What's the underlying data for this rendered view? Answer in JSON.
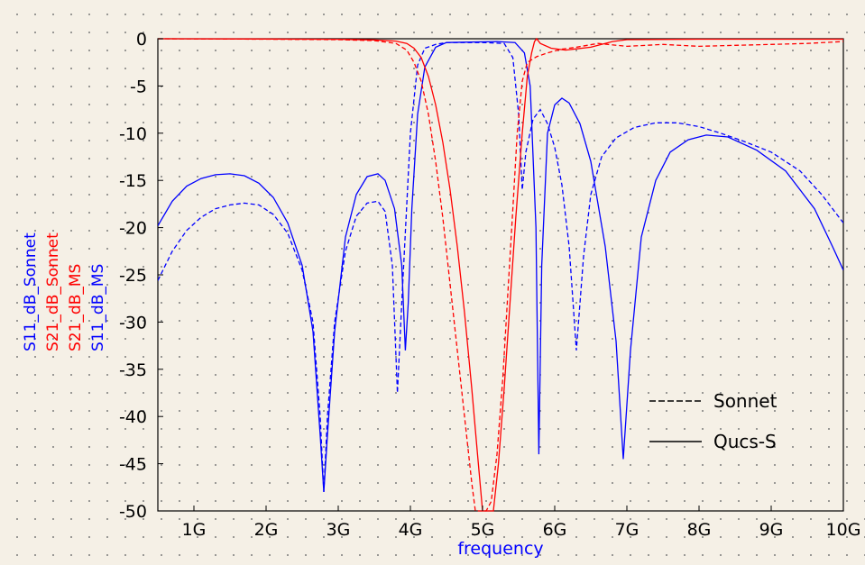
{
  "chart_data": {
    "type": "line",
    "xlabel": "frequency",
    "ylabels": [
      {
        "text": "S11_dB_Sonnet",
        "color": "#0000ff"
      },
      {
        "text": "S21_dB_Sonnet",
        "color": "#ff0000"
      },
      {
        "text": "S21_dB_MS",
        "color": "#ff0000"
      },
      {
        "text": "S11_dB_MS",
        "color": "#0000ff"
      }
    ],
    "xlim": [
      0.5,
      10
    ],
    "ylim": [
      -50,
      0
    ],
    "xticks": [
      {
        "v": 1,
        "label": "1G"
      },
      {
        "v": 2,
        "label": "2G"
      },
      {
        "v": 3,
        "label": "3G"
      },
      {
        "v": 4,
        "label": "4G"
      },
      {
        "v": 5,
        "label": "5G"
      },
      {
        "v": 6,
        "label": "6G"
      },
      {
        "v": 7,
        "label": "7G"
      },
      {
        "v": 8,
        "label": "8G"
      },
      {
        "v": 9,
        "label": "9G"
      },
      {
        "v": 10,
        "label": "10G"
      }
    ],
    "yticks": [
      0,
      -5,
      -10,
      -15,
      -20,
      -25,
      -30,
      -35,
      -40,
      -45,
      -50
    ],
    "grid": true,
    "legend_position": "bottom-right",
    "legend": [
      {
        "label": "Sonnet",
        "style": "dashed"
      },
      {
        "label": "Qucs-S",
        "style": "solid"
      }
    ],
    "series": [
      {
        "name": "S11_dB_Sonnet",
        "color": "#0000ff",
        "style": "dashed",
        "points": [
          [
            0.5,
            -25.6
          ],
          [
            0.7,
            -22.5
          ],
          [
            0.9,
            -20.3
          ],
          [
            1.1,
            -18.9
          ],
          [
            1.3,
            -18
          ],
          [
            1.5,
            -17.6
          ],
          [
            1.7,
            -17.4
          ],
          [
            1.9,
            -17.6
          ],
          [
            2.1,
            -18.6
          ],
          [
            2.3,
            -20.6
          ],
          [
            2.5,
            -24.5
          ],
          [
            2.65,
            -30
          ],
          [
            2.75,
            -40
          ],
          [
            2.8,
            -48
          ],
          [
            2.85,
            -40
          ],
          [
            2.95,
            -30
          ],
          [
            3.1,
            -22.5
          ],
          [
            3.25,
            -18.8
          ],
          [
            3.4,
            -17.4
          ],
          [
            3.55,
            -17.2
          ],
          [
            3.65,
            -18.3
          ],
          [
            3.75,
            -24
          ],
          [
            3.82,
            -37.5
          ],
          [
            3.88,
            -28
          ],
          [
            3.92,
            -22
          ],
          [
            4.0,
            -10
          ],
          [
            4.1,
            -2.8
          ],
          [
            4.2,
            -1
          ],
          [
            4.35,
            -0.6
          ],
          [
            4.5,
            -0.4
          ],
          [
            5.0,
            -0.4
          ],
          [
            5.3,
            -0.5
          ],
          [
            5.42,
            -2
          ],
          [
            5.5,
            -8
          ],
          [
            5.55,
            -16
          ],
          [
            5.6,
            -12
          ],
          [
            5.7,
            -8.5
          ],
          [
            5.8,
            -7.5
          ],
          [
            5.9,
            -9
          ],
          [
            6.0,
            -11.5
          ],
          [
            6.1,
            -15.5
          ],
          [
            6.2,
            -22
          ],
          [
            6.3,
            -33
          ],
          [
            6.4,
            -23
          ],
          [
            6.5,
            -16.5
          ],
          [
            6.65,
            -12.5
          ],
          [
            6.85,
            -10.5
          ],
          [
            7.1,
            -9.4
          ],
          [
            7.4,
            -8.9
          ],
          [
            7.7,
            -8.9
          ],
          [
            8.0,
            -9.3
          ],
          [
            8.3,
            -10
          ],
          [
            8.6,
            -10.8
          ],
          [
            9.0,
            -12
          ],
          [
            9.4,
            -14
          ],
          [
            9.7,
            -16.5
          ],
          [
            10.0,
            -19.5
          ]
        ]
      },
      {
        "name": "S11_dB_MS",
        "color": "#0000ff",
        "style": "solid",
        "points": [
          [
            0.5,
            -19.8
          ],
          [
            0.7,
            -17.2
          ],
          [
            0.9,
            -15.6
          ],
          [
            1.1,
            -14.8
          ],
          [
            1.3,
            -14.4
          ],
          [
            1.5,
            -14.3
          ],
          [
            1.7,
            -14.5
          ],
          [
            1.9,
            -15.3
          ],
          [
            2.1,
            -16.8
          ],
          [
            2.3,
            -19.5
          ],
          [
            2.5,
            -24
          ],
          [
            2.65,
            -31
          ],
          [
            2.75,
            -42
          ],
          [
            2.8,
            -48
          ],
          [
            2.85,
            -42
          ],
          [
            2.95,
            -31
          ],
          [
            3.1,
            -21
          ],
          [
            3.25,
            -16.5
          ],
          [
            3.4,
            -14.6
          ],
          [
            3.55,
            -14.3
          ],
          [
            3.65,
            -15
          ],
          [
            3.78,
            -18
          ],
          [
            3.88,
            -24
          ],
          [
            3.93,
            -33
          ],
          [
            3.97,
            -28
          ],
          [
            4.02,
            -18
          ],
          [
            4.1,
            -8
          ],
          [
            4.2,
            -3
          ],
          [
            4.35,
            -0.9
          ],
          [
            4.5,
            -0.4
          ],
          [
            5.2,
            -0.3
          ],
          [
            5.45,
            -0.4
          ],
          [
            5.58,
            -1.5
          ],
          [
            5.66,
            -5
          ],
          [
            5.74,
            -20
          ],
          [
            5.78,
            -44
          ],
          [
            5.82,
            -24
          ],
          [
            5.9,
            -10
          ],
          [
            6.0,
            -7
          ],
          [
            6.1,
            -6.3
          ],
          [
            6.2,
            -6.8
          ],
          [
            6.35,
            -9
          ],
          [
            6.5,
            -13
          ],
          [
            6.7,
            -22
          ],
          [
            6.85,
            -32
          ],
          [
            6.95,
            -44.5
          ],
          [
            7.05,
            -33
          ],
          [
            7.2,
            -21
          ],
          [
            7.4,
            -15
          ],
          [
            7.6,
            -12
          ],
          [
            7.85,
            -10.7
          ],
          [
            8.1,
            -10.2
          ],
          [
            8.4,
            -10.4
          ],
          [
            8.8,
            -11.8
          ],
          [
            9.2,
            -14
          ],
          [
            9.6,
            -18
          ],
          [
            9.85,
            -22
          ],
          [
            10.0,
            -24.5
          ]
        ]
      },
      {
        "name": "S21_dB_Sonnet",
        "color": "#ff0000",
        "style": "dashed",
        "points": [
          [
            0.5,
            0
          ],
          [
            2.0,
            -0.05
          ],
          [
            3.0,
            -0.1
          ],
          [
            3.5,
            -0.2
          ],
          [
            3.8,
            -0.5
          ],
          [
            3.95,
            -1.2
          ],
          [
            4.05,
            -2.5
          ],
          [
            4.15,
            -4.5
          ],
          [
            4.25,
            -8
          ],
          [
            4.35,
            -13
          ],
          [
            4.45,
            -19
          ],
          [
            4.55,
            -26
          ],
          [
            4.65,
            -33
          ],
          [
            4.75,
            -40
          ],
          [
            4.85,
            -47
          ],
          [
            4.9,
            -50
          ],
          [
            5.05,
            -50
          ],
          [
            5.12,
            -49
          ],
          [
            5.2,
            -44
          ],
          [
            5.28,
            -36
          ],
          [
            5.35,
            -27
          ],
          [
            5.42,
            -18
          ],
          [
            5.48,
            -10
          ],
          [
            5.55,
            -4.5
          ],
          [
            5.62,
            -2.5
          ],
          [
            5.75,
            -1.9
          ],
          [
            5.9,
            -1.5
          ],
          [
            6.1,
            -1.1
          ],
          [
            6.3,
            -0.9
          ],
          [
            6.6,
            -0.5
          ],
          [
            7.0,
            -0.8
          ],
          [
            7.5,
            -0.6
          ],
          [
            8.0,
            -0.8
          ],
          [
            8.5,
            -0.7
          ],
          [
            9.0,
            -0.6
          ],
          [
            9.5,
            -0.5
          ],
          [
            10.0,
            -0.3
          ]
        ]
      },
      {
        "name": "S21_dB_MS",
        "color": "#ff0000",
        "style": "solid",
        "points": [
          [
            0.5,
            0
          ],
          [
            2.0,
            -0.03
          ],
          [
            3.0,
            -0.06
          ],
          [
            3.5,
            -0.12
          ],
          [
            3.8,
            -0.25
          ],
          [
            3.95,
            -0.5
          ],
          [
            4.05,
            -1
          ],
          [
            4.15,
            -2
          ],
          [
            4.25,
            -4
          ],
          [
            4.35,
            -7
          ],
          [
            4.45,
            -11
          ],
          [
            4.55,
            -16
          ],
          [
            4.65,
            -22
          ],
          [
            4.75,
            -29
          ],
          [
            4.85,
            -37
          ],
          [
            4.93,
            -44
          ],
          [
            5.0,
            -50
          ],
          [
            5.15,
            -50
          ],
          [
            5.22,
            -45
          ],
          [
            5.3,
            -37
          ],
          [
            5.38,
            -28
          ],
          [
            5.46,
            -19
          ],
          [
            5.55,
            -10
          ],
          [
            5.62,
            -4
          ],
          [
            5.68,
            -1.5
          ],
          [
            5.72,
            -0.3
          ],
          [
            5.75,
            0
          ],
          [
            5.8,
            -0.5
          ],
          [
            5.95,
            -1
          ],
          [
            6.15,
            -1.2
          ],
          [
            6.5,
            -0.9
          ],
          [
            6.8,
            -0.3
          ],
          [
            7.0,
            -0.1
          ],
          [
            8.0,
            -0.05
          ],
          [
            10.0,
            -0.05
          ]
        ]
      }
    ]
  }
}
